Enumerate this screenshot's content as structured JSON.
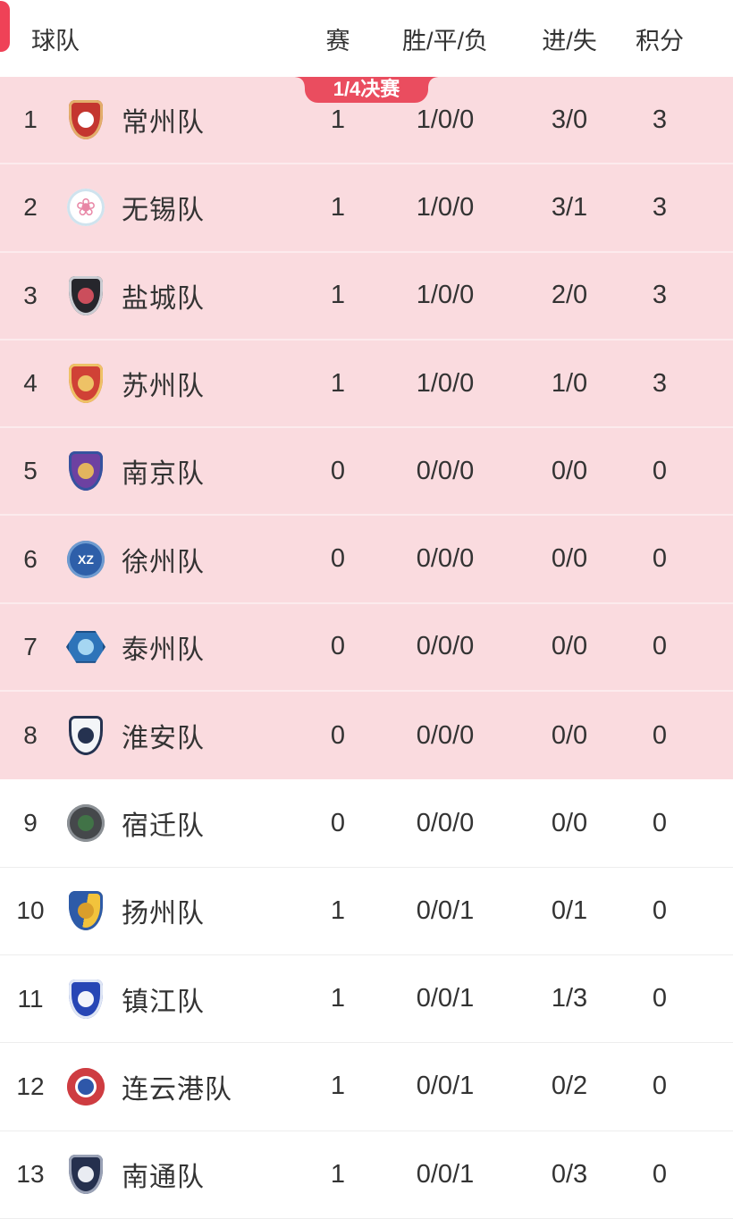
{
  "colors": {
    "ribbon_red": "#ea4d5f",
    "ribbon_text": "#ffffff",
    "edge_tab_red": "#ef4257",
    "qualified_row_pink": "#fadbdf",
    "qualified_top_line": "#f6c3ca",
    "pink_divider": "#fcebed",
    "white_divider": "#ededed",
    "text_dark": "#333333"
  },
  "header": {
    "team": "球队",
    "played": "赛",
    "wdl": "胜/平/负",
    "goals": "进/失",
    "points": "积分"
  },
  "ribbon": {
    "label": "1/4决赛"
  },
  "teams": [
    {
      "rank": "1",
      "name": "常州队",
      "played": "1",
      "wdl": "1/0/0",
      "goals": "3/0",
      "points": "3",
      "logo": {
        "name": "changzhou-crest",
        "shape": "shield",
        "bg": [
          "#c4362f"
        ],
        "border": "#e2ae6b",
        "core": "#ffffff"
      }
    },
    {
      "rank": "2",
      "name": "无锡队",
      "played": "1",
      "wdl": "1/0/0",
      "goals": "3/1",
      "points": "3",
      "logo": {
        "name": "wuxi-crest",
        "shape": "circle",
        "bg": [
          "#ffffff"
        ],
        "border": "#cfe3ee",
        "glyph": "❀",
        "glyphColor": "#e887a6",
        "glyphSize": 27
      }
    },
    {
      "rank": "3",
      "name": "盐城队",
      "played": "1",
      "wdl": "1/0/0",
      "goals": "2/0",
      "points": "3",
      "logo": {
        "name": "yancheng-crest",
        "shape": "shield",
        "bg": [
          "#26262c"
        ],
        "border": "#caccd2",
        "core": "#cb4e5c"
      }
    },
    {
      "rank": "4",
      "name": "苏州队",
      "played": "1",
      "wdl": "1/0/0",
      "goals": "1/0",
      "points": "3",
      "logo": {
        "name": "suzhou-crest",
        "shape": "shield",
        "bg": [
          "#d04136"
        ],
        "border": "#eec266",
        "core": "#eec266"
      }
    },
    {
      "rank": "5",
      "name": "南京队",
      "played": "0",
      "wdl": "0/0/0",
      "goals": "0/0",
      "points": "0",
      "logo": {
        "name": "nanjing-crest",
        "shape": "shield",
        "bg": [
          "#6d41a1"
        ],
        "border": "#35539f",
        "core": "#e3b55e"
      }
    },
    {
      "rank": "6",
      "name": "徐州队",
      "played": "0",
      "wdl": "0/0/0",
      "goals": "0/0",
      "points": "0",
      "logo": {
        "name": "xuzhou-crest",
        "shape": "circle",
        "bg": [
          "#2e5fa9"
        ],
        "border": "#6e9bd0",
        "glyph": "XZ",
        "glyphColor": "#ffffff",
        "glyphSize": 14
      }
    },
    {
      "rank": "7",
      "name": "泰州队",
      "played": "0",
      "wdl": "0/0/0",
      "goals": "0/0",
      "points": "0",
      "logo": {
        "name": "taizhou-crest",
        "shape": "hex",
        "bg": [
          "#2e74b9"
        ],
        "border": "#1d4f86",
        "core": "#a5d6f2"
      }
    },
    {
      "rank": "8",
      "name": "淮安队",
      "played": "0",
      "wdl": "0/0/0",
      "goals": "0/0",
      "points": "0",
      "logo": {
        "name": "huaian-crest",
        "shape": "shield",
        "bg": [
          "#f3f5f8"
        ],
        "border": "#253250",
        "core": "#253250"
      }
    },
    {
      "rank": "9",
      "name": "宿迁队",
      "played": "0",
      "wdl": "0/0/0",
      "goals": "0/0",
      "points": "0",
      "logo": {
        "name": "suqian-crest",
        "shape": "circle",
        "bg": [
          "#45484b"
        ],
        "border": "#8c9196",
        "core": "#417347"
      }
    },
    {
      "rank": "10",
      "name": "扬州队",
      "played": "1",
      "wdl": "0/0/1",
      "goals": "0/1",
      "points": "0",
      "logo": {
        "name": "yangzhou-crest",
        "shape": "shield",
        "bg": [
          "#2d5ba8",
          "#f2c33c"
        ],
        "border": "#2d5ba8",
        "core": "#d99e2b"
      }
    },
    {
      "rank": "11",
      "name": "镇江队",
      "played": "1",
      "wdl": "0/0/1",
      "goals": "1/3",
      "points": "0",
      "logo": {
        "name": "zhenjiang-crest",
        "shape": "shield",
        "bg": [
          "#2746b5"
        ],
        "border": "#dfe6f5",
        "core": "#f2f4fb"
      }
    },
    {
      "rank": "12",
      "name": "连云港队",
      "played": "1",
      "wdl": "0/0/1",
      "goals": "0/2",
      "points": "0",
      "logo": {
        "name": "lianyungang-crest",
        "shape": "circle",
        "bg": [
          "#ce3c41"
        ],
        "border": "#ce3c41",
        "core": "#2e57a9",
        "coreRing": "#ffffff"
      }
    },
    {
      "rank": "13",
      "name": "南通队",
      "played": "1",
      "wdl": "0/0/1",
      "goals": "0/3",
      "points": "0",
      "logo": {
        "name": "nantong-crest",
        "shape": "shield",
        "bg": [
          "#25304e"
        ],
        "border": "#9aa2b6",
        "core": "#e9ecf2"
      }
    }
  ]
}
